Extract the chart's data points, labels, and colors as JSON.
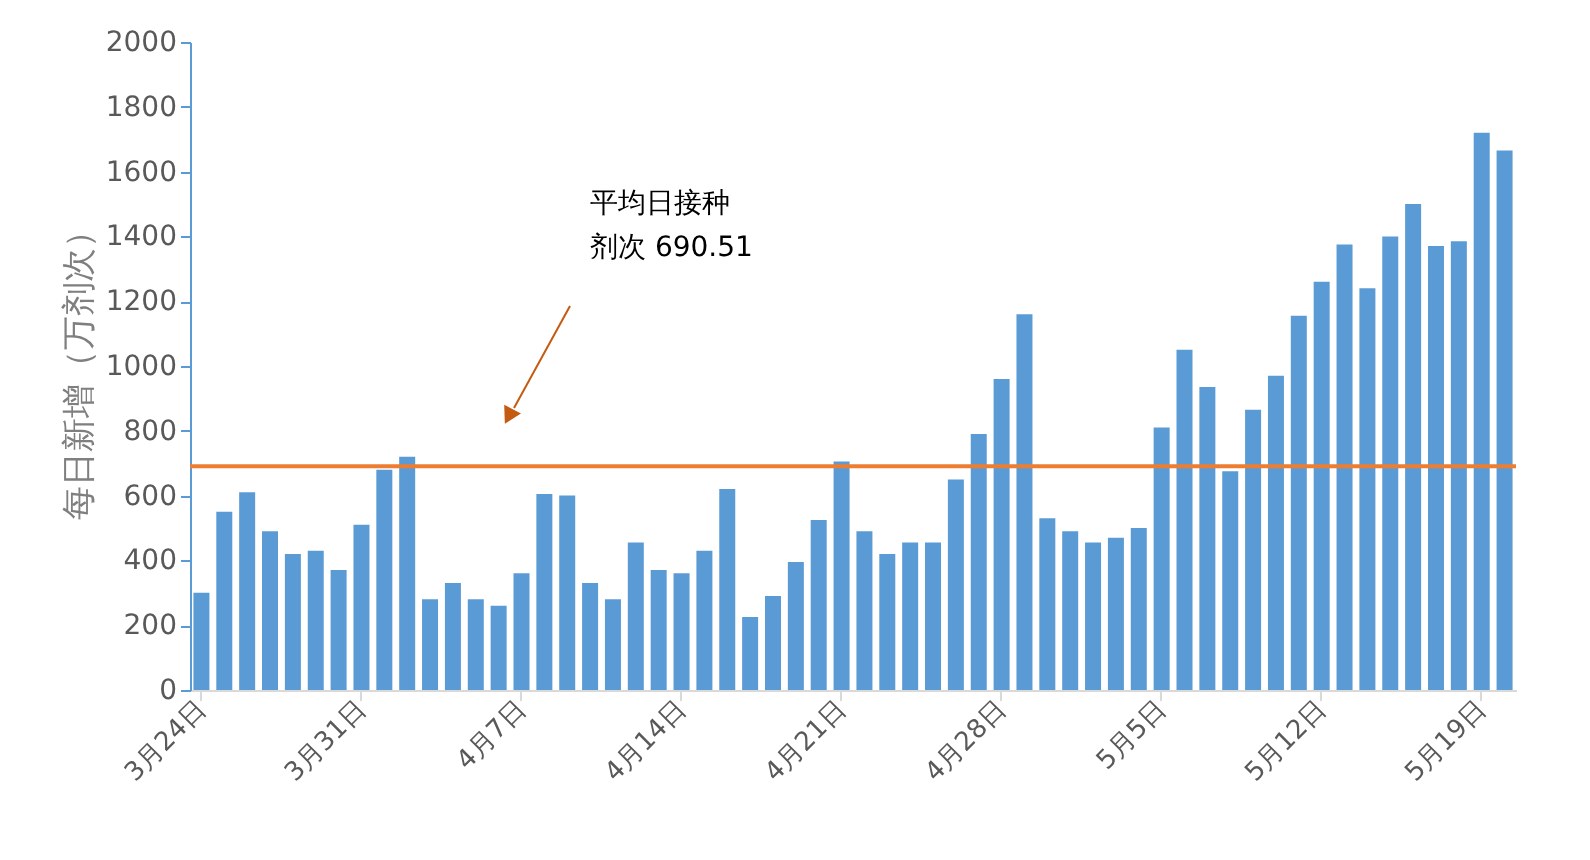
{
  "chart_data": {
    "type": "bar",
    "ylabel": "每日新增（万剂次）",
    "categories": [
      "3月24日",
      null,
      null,
      null,
      null,
      null,
      null,
      "3月31日",
      null,
      null,
      null,
      null,
      null,
      null,
      "4月7日",
      null,
      null,
      null,
      null,
      null,
      null,
      "4月14日",
      null,
      null,
      null,
      null,
      null,
      null,
      "4月21日",
      null,
      null,
      null,
      null,
      null,
      null,
      "4月28日",
      null,
      null,
      null,
      null,
      null,
      null,
      "5月5日",
      null,
      null,
      null,
      null,
      null,
      null,
      "5月12日",
      null,
      null,
      null,
      null,
      null,
      null,
      "5月19日",
      null
    ],
    "values": [
      300,
      550,
      610,
      490,
      420,
      430,
      370,
      510,
      680,
      720,
      280,
      330,
      280,
      260,
      360,
      605,
      600,
      330,
      280,
      455,
      370,
      360,
      430,
      620,
      225,
      290,
      395,
      525,
      705,
      490,
      420,
      455,
      455,
      650,
      790,
      960,
      1160,
      530,
      490,
      455,
      470,
      500,
      810,
      1050,
      935,
      675,
      865,
      970,
      1155,
      1260,
      1375,
      1240,
      1400,
      1500,
      1370,
      1385,
      1720,
      1665
    ],
    "color": "#5b9bd5",
    "ylim": [
      0,
      2000
    ],
    "yticks": [
      0,
      200,
      400,
      600,
      800,
      1000,
      1200,
      1400,
      1600,
      1800,
      2000
    ],
    "ref_lines": [
      {
        "axis": "y",
        "value": 690.51,
        "color": "#ed7d31"
      }
    ],
    "annotations": [
      "平均日接种",
      "剂次 690.51"
    ],
    "grid": false,
    "legend": false
  }
}
